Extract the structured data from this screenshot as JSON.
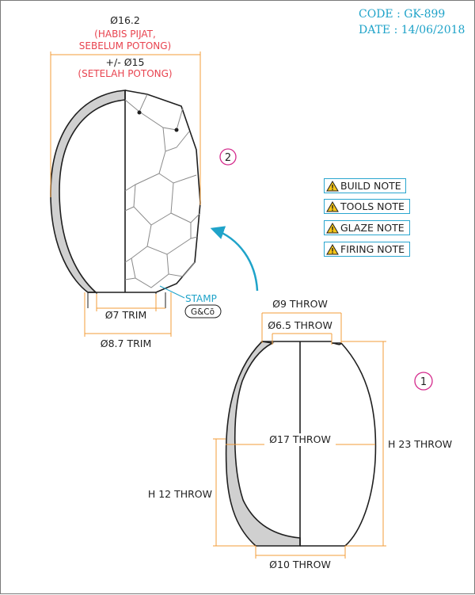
{
  "header": {
    "code": "CODE : GK-899",
    "date": "DATE : 14/06/2018"
  },
  "notes": [
    {
      "label": "BUILD NOTE",
      "icon": "warning-icon"
    },
    {
      "label": "TOOLS NOTE",
      "icon": "warning-icon"
    },
    {
      "label": "GLAZE NOTE",
      "icon": "warning-icon"
    },
    {
      "label": "FIRING NOTE",
      "icon": "warning-icon"
    }
  ],
  "figure2": {
    "number": "2",
    "top_dim": "Ø16.2",
    "top_note_1": "(HABIS PIJAT,",
    "top_note_2": "SEBELUM POTONG)",
    "mid_dim": "+/- Ø15",
    "mid_note": "(SETELAH POTONG)",
    "trim_inner": "Ø7 TRIM",
    "trim_outer": "Ø8.7 TRIM",
    "stamp_label": "STAMP",
    "stamp_mark": "G&Cō"
  },
  "figure1": {
    "number": "1",
    "top_outer": "Ø9 THROW",
    "top_inner": "Ø6.5 THROW",
    "belly": "Ø17 THROW",
    "height_total": "H 23 THROW",
    "height_partial": "H 12 THROW",
    "base": "Ø10 THROW"
  },
  "colors": {
    "dimension": "#f39c3a",
    "accent": "#1fa3c9",
    "note_red": "#e8434f",
    "number_circle": "#d42a8c",
    "section_fill": "#d0d0d0"
  }
}
